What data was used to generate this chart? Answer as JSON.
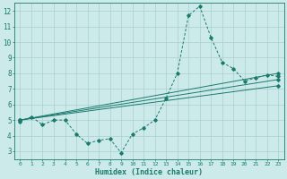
{
  "xlabel": "Humidex (Indice chaleur)",
  "background_color": "#cceaea",
  "grid_color": "#aacece",
  "line_color": "#1a7a6e",
  "xlim": [
    -0.5,
    23.5
  ],
  "ylim": [
    2.5,
    12.5
  ],
  "xticks": [
    0,
    1,
    2,
    3,
    4,
    5,
    6,
    7,
    8,
    9,
    10,
    11,
    12,
    13,
    14,
    15,
    16,
    17,
    18,
    19,
    20,
    21,
    22,
    23
  ],
  "yticks": [
    3,
    4,
    5,
    6,
    7,
    8,
    9,
    10,
    11,
    12
  ],
  "y_zigzag": [
    4.9,
    5.2,
    4.7,
    5.0,
    5.0,
    4.1,
    3.5,
    3.7,
    3.8,
    2.9,
    4.1,
    4.5,
    5.0,
    6.4,
    8.0,
    11.7,
    12.3,
    10.3,
    8.7,
    8.3,
    7.5,
    7.7,
    7.9,
    7.8
  ],
  "straight_lines": [
    {
      "x0": 0,
      "y0": 5.0,
      "x1": 23,
      "y1": 8.0
    },
    {
      "x0": 0,
      "y0": 5.0,
      "x1": 23,
      "y1": 7.6
    },
    {
      "x0": 0,
      "y0": 5.0,
      "x1": 23,
      "y1": 7.2
    }
  ]
}
